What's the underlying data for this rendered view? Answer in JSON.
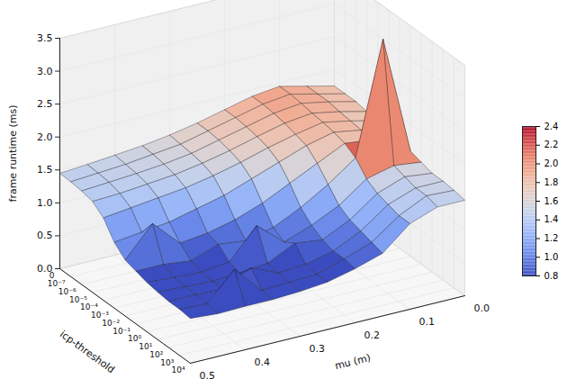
{
  "chart_data": {
    "type": "surface",
    "xlabel": "mu (m)",
    "ylabel": "icp-threshold",
    "zlabel": "frame runtime (ms)",
    "x": [
      0,
      0.05,
      0.1,
      0.15,
      0.2,
      0.25,
      0.3,
      0.35,
      0.4,
      0.45,
      0.5
    ],
    "xlim": [
      0,
      0.5
    ],
    "xticks": [
      {
        "value": 0,
        "label": "0.0"
      },
      {
        "value": 0.1,
        "label": "0.1"
      },
      {
        "value": 0.2,
        "label": "0.2"
      },
      {
        "value": 0.3,
        "label": "0.3"
      },
      {
        "value": 0.4,
        "label": "0.4"
      },
      {
        "value": 0.5,
        "label": "0.5"
      }
    ],
    "categories": [
      "0",
      "10⁻⁷",
      "10⁻⁶",
      "10⁻⁵",
      "10⁻⁴",
      "10⁻³",
      "10⁻²",
      "10⁻¹",
      "10⁰",
      "10¹",
      "10²",
      "10³",
      "10⁴"
    ],
    "zlim": [
      0,
      3.5
    ],
    "zticks": [
      {
        "value": 0,
        "label": "0.0"
      },
      {
        "value": 0.5,
        "label": "0.5"
      },
      {
        "value": 1,
        "label": "1.0"
      },
      {
        "value": 1.5,
        "label": "1.5"
      },
      {
        "value": 2,
        "label": "2.0"
      },
      {
        "value": 2.5,
        "label": "2.5"
      },
      {
        "value": 3,
        "label": "3.0"
      },
      {
        "value": 3.5,
        "label": "3.5"
      }
    ],
    "z": [
      [
        1.75,
        1.85,
        1.95,
        1.9,
        1.8,
        1.7,
        1.62,
        1.56,
        1.52,
        1.48,
        1.45
      ],
      [
        1.75,
        1.85,
        1.95,
        1.9,
        1.8,
        1.7,
        1.6,
        1.55,
        1.5,
        1.47,
        1.44
      ],
      [
        1.75,
        1.85,
        1.93,
        1.88,
        1.78,
        1.68,
        1.58,
        1.52,
        1.48,
        1.45,
        1.42
      ],
      [
        1.72,
        1.82,
        1.9,
        1.85,
        1.75,
        1.64,
        1.55,
        1.48,
        1.44,
        1.4,
        1.38
      ],
      [
        1.7,
        1.8,
        1.88,
        1.8,
        1.7,
        1.58,
        1.48,
        1.4,
        1.35,
        1.3,
        1.25
      ],
      [
        1.68,
        1.78,
        1.85,
        1.75,
        1.6,
        1.45,
        1.3,
        1.2,
        1.1,
        1.05,
        1.0
      ],
      [
        1.65,
        1.75,
        1.8,
        1.6,
        1.4,
        1.2,
        1.05,
        0.95,
        0.9,
        1.3,
        0.85
      ],
      [
        1.6,
        3.4,
        1.7,
        1.4,
        1.15,
        0.95,
        0.85,
        0.9,
        0.75,
        0.8,
        0.8
      ],
      [
        1.55,
        1.6,
        1.5,
        1.2,
        1.0,
        0.85,
        1.2,
        0.75,
        0.7,
        0.72,
        0.75
      ],
      [
        1.5,
        1.55,
        1.4,
        1.1,
        0.9,
        0.95,
        0.75,
        0.7,
        0.68,
        0.7,
        0.72
      ],
      [
        1.5,
        1.5,
        1.35,
        1.05,
        0.85,
        0.75,
        0.72,
        0.9,
        0.68,
        0.7,
        0.7
      ],
      [
        1.48,
        1.5,
        1.3,
        1.0,
        0.85,
        0.72,
        0.7,
        0.68,
        1.1,
        0.68,
        0.7
      ],
      [
        1.45,
        1.45,
        1.3,
        0.95,
        0.82,
        0.72,
        0.68,
        0.66,
        0.66,
        0.65,
        0.68
      ]
    ],
    "colorbar": {
      "range": [
        0.8,
        2.4
      ],
      "ticks": [
        {
          "value": 0.8,
          "label": "0.8"
        },
        {
          "value": 1.0,
          "label": "1.0"
        },
        {
          "value": 1.2,
          "label": "1.2"
        },
        {
          "value": 1.4,
          "label": "1.4"
        },
        {
          "value": 1.6,
          "label": "1.6"
        },
        {
          "value": 1.8,
          "label": "1.8"
        },
        {
          "value": 2.0,
          "label": "2.0"
        },
        {
          "value": 2.2,
          "label": "2.2"
        },
        {
          "value": 2.4,
          "label": "2.4"
        }
      ]
    }
  }
}
